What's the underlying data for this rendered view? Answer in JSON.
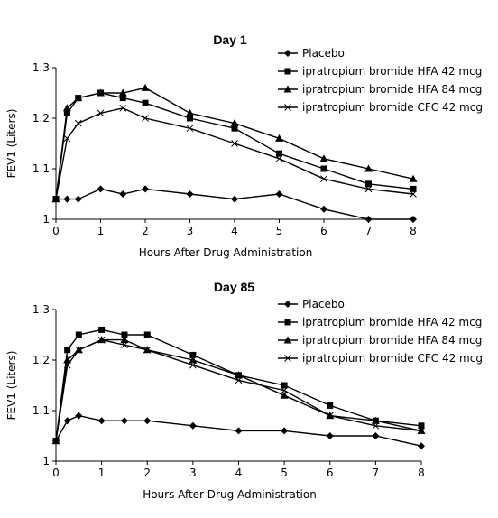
{
  "chart_data": [
    {
      "type": "line",
      "title": "Day 1",
      "xlabel": "Hours After Drug Administration",
      "ylabel": "FEV1 (Liters)",
      "xlim": [
        0,
        8
      ],
      "ylim": [
        1,
        1.3
      ],
      "xticks": [
        "0",
        "1",
        "2",
        "3",
        "4",
        "5",
        "6",
        "7",
        "8"
      ],
      "yticks": [
        "1",
        "1.1",
        "1.2",
        "1.3"
      ],
      "grid": false,
      "legend_position": "top-right",
      "series": [
        {
          "name": "Placebo",
          "marker": "diamond",
          "x": [
            0,
            0.25,
            0.5,
            1,
            1.5,
            2,
            3,
            4,
            5,
            6,
            7,
            8
          ],
          "y": [
            1.04,
            1.04,
            1.04,
            1.06,
            1.05,
            1.06,
            1.05,
            1.04,
            1.05,
            1.02,
            1.0,
            1.0
          ]
        },
        {
          "name": "ipratropium bromide HFA 42 mcg",
          "marker": "square",
          "x": [
            0,
            0.25,
            0.5,
            1,
            1.5,
            2,
            3,
            4,
            5,
            6,
            7,
            8
          ],
          "y": [
            1.04,
            1.21,
            1.24,
            1.25,
            1.24,
            1.23,
            1.2,
            1.18,
            1.13,
            1.1,
            1.07,
            1.06
          ]
        },
        {
          "name": "ipratropium bromide HFA 84 mcg",
          "marker": "triangle",
          "x": [
            0,
            0.25,
            0.5,
            1,
            1.5,
            2,
            3,
            4,
            5,
            6,
            7,
            8
          ],
          "y": [
            1.04,
            1.22,
            1.24,
            1.25,
            1.25,
            1.26,
            1.21,
            1.19,
            1.16,
            1.12,
            1.1,
            1.08
          ]
        },
        {
          "name": "ipratropium bromide CFC 42 mcg",
          "marker": "x",
          "x": [
            0,
            0.25,
            0.5,
            1,
            1.5,
            2,
            3,
            4,
            5,
            6,
            7,
            8
          ],
          "y": [
            1.04,
            1.16,
            1.19,
            1.21,
            1.22,
            1.2,
            1.18,
            1.15,
            1.12,
            1.08,
            1.06,
            1.05
          ]
        }
      ]
    },
    {
      "type": "line",
      "title": "Day 85",
      "xlabel": "Hours After Drug Administration",
      "ylabel": "FEV1 (Liters)",
      "xlim": [
        0,
        8
      ],
      "ylim": [
        1,
        1.3
      ],
      "xticks": [
        "0",
        "1",
        "2",
        "3",
        "4",
        "5",
        "6",
        "7",
        "8"
      ],
      "yticks": [
        "1",
        "1.1",
        "1.2",
        "1.3"
      ],
      "grid": false,
      "legend_position": "top-right",
      "series": [
        {
          "name": "Placebo",
          "marker": "diamond",
          "x": [
            0,
            0.25,
            0.5,
            1,
            1.5,
            2,
            3,
            4,
            5,
            6,
            7,
            8
          ],
          "y": [
            1.04,
            1.08,
            1.09,
            1.08,
            1.08,
            1.08,
            1.07,
            1.06,
            1.06,
            1.05,
            1.05,
            1.03
          ]
        },
        {
          "name": "ipratropium bromide HFA 42 mcg",
          "marker": "square",
          "x": [
            0,
            0.25,
            0.5,
            1,
            1.5,
            2,
            3,
            4,
            5,
            6,
            7,
            8
          ],
          "y": [
            1.04,
            1.22,
            1.25,
            1.26,
            1.25,
            1.25,
            1.21,
            1.17,
            1.15,
            1.11,
            1.08,
            1.07
          ]
        },
        {
          "name": "ipratropium bromide HFA 84 mcg",
          "marker": "triangle",
          "x": [
            0,
            0.25,
            0.5,
            1,
            1.5,
            2,
            3,
            4,
            5,
            6,
            7,
            8
          ],
          "y": [
            1.04,
            1.2,
            1.22,
            1.24,
            1.24,
            1.22,
            1.2,
            1.17,
            1.13,
            1.09,
            1.08,
            1.06
          ]
        },
        {
          "name": "ipratropium bromide CFC 42 mcg",
          "marker": "x",
          "x": [
            0,
            0.25,
            0.5,
            1,
            1.5,
            2,
            3,
            4,
            5,
            6,
            7,
            8
          ],
          "y": [
            1.04,
            1.19,
            1.22,
            1.24,
            1.23,
            1.22,
            1.19,
            1.16,
            1.14,
            1.09,
            1.07,
            1.06
          ]
        }
      ]
    }
  ]
}
